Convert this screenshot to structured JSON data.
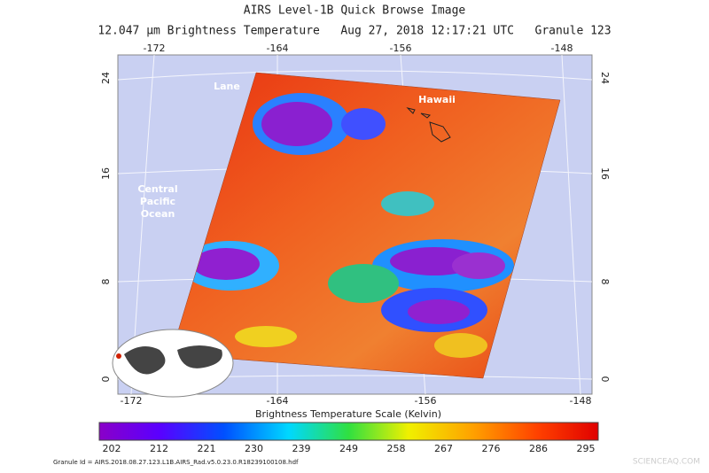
{
  "header": {
    "title": "AIRS Level-1B Quick Browse Image",
    "subtitle": "12.047 µm Brightness Temperature   Aug 27, 2018 12:17:21 UTC   Granule 123"
  },
  "map": {
    "top_lon_ticks": [
      "-172",
      "-164",
      "-156",
      "-148"
    ],
    "bottom_lon_ticks": [
      "-172",
      "-164",
      "-156",
      "-148"
    ],
    "left_lat_ticks": [
      "24",
      "16",
      "8",
      "0"
    ],
    "right_lat_ticks": [
      "24",
      "16",
      "8",
      "0"
    ],
    "labels": {
      "lane": "Lane",
      "hawaii": "Hawaii",
      "ocean": [
        "Central",
        "Pacific",
        "Ocean"
      ]
    }
  },
  "colorbar": {
    "title": "Brightness Temperature Scale (Kelvin)",
    "ticks": [
      "202",
      "212",
      "221",
      "230",
      "239",
      "249",
      "258",
      "267",
      "276",
      "286",
      "295"
    ]
  },
  "footer": {
    "granule_id": "Granule Id = AIRS.2018.08.27.123.L1B.AIRS_Rad.v5.0.23.0.R18239100108.hdf",
    "watermark": "SCIENCEAQ.COM"
  }
}
